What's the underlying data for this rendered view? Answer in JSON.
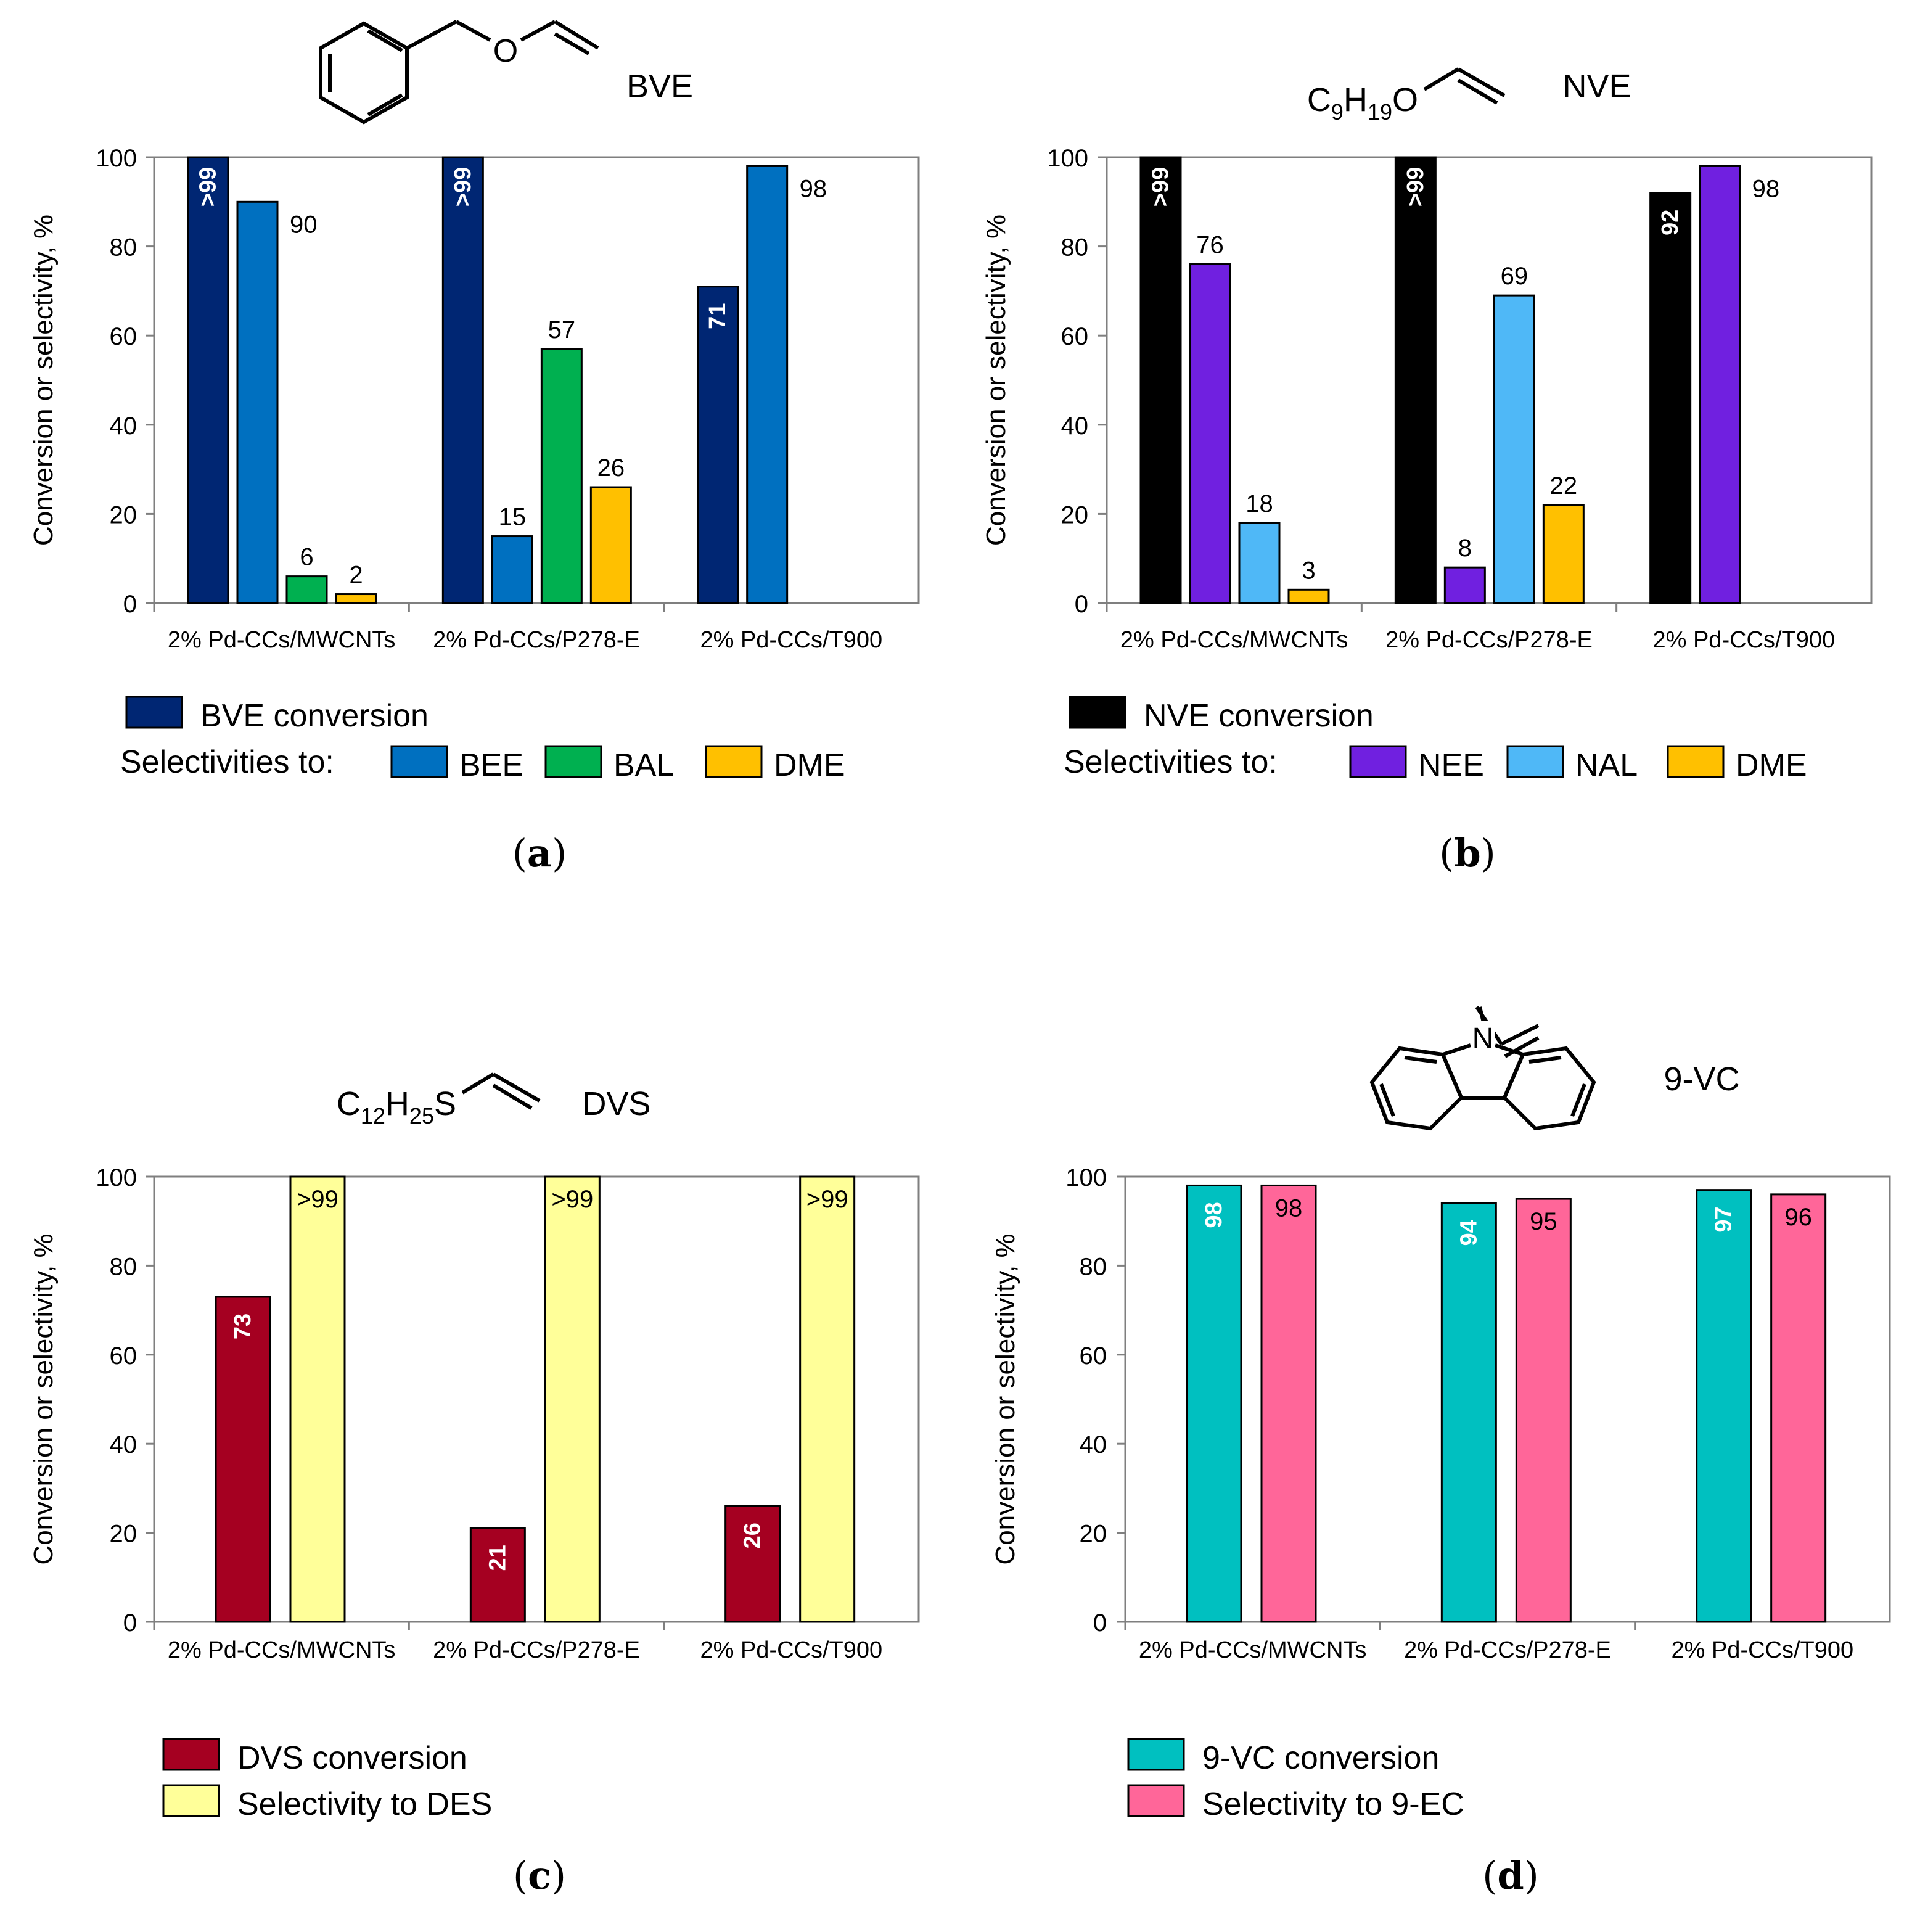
{
  "chart_data": [
    {
      "type": "bar",
      "panel": "(a)",
      "compound": "BVE",
      "ylabel": "Conversion or selectivity, %",
      "ylim": [
        0,
        100
      ],
      "yticks": [
        "0",
        "20",
        "40",
        "60",
        "80",
        "100"
      ],
      "categories": [
        "2% Pd-CCs/MWCNTs",
        "2% Pd-CCs/P278-E",
        "2% Pd-CCs/T900"
      ],
      "series": [
        {
          "name": "BVE conversion",
          "color": "#002673",
          "values": [
            100,
            100,
            71
          ],
          "labels": [
            ">99",
            ">99",
            "71"
          ],
          "label_inside": true
        },
        {
          "name": "BEE",
          "color": "#0070c0",
          "values": [
            90,
            15,
            98
          ],
          "labels": [
            "90",
            "15",
            "98"
          ]
        },
        {
          "name": "BAL",
          "color": "#00b050",
          "values": [
            6,
            57,
            null
          ],
          "labels": [
            "6",
            "57",
            null
          ]
        },
        {
          "name": "DME",
          "color": "#ffc000",
          "values": [
            2,
            26,
            null
          ],
          "labels": [
            "2",
            "26",
            null
          ]
        }
      ],
      "legend": {
        "conversion": "BVE conversion",
        "selectivity_prefix": "Selectivities to:"
      }
    },
    {
      "type": "bar",
      "panel": "(b)",
      "compound": "NVE",
      "formula_parts": [
        "C",
        "9",
        "H",
        "19",
        "O"
      ],
      "ylabel": "Conversion or selectivity, %",
      "ylim": [
        0,
        100
      ],
      "yticks": [
        "0",
        "20",
        "40",
        "60",
        "80",
        "100"
      ],
      "categories": [
        "2% Pd-CCs/MWCNTs",
        "2% Pd-CCs/P278-E",
        "2% Pd-CCs/T900"
      ],
      "series": [
        {
          "name": "NVE conversion",
          "color": "#000000",
          "values": [
            100,
            100,
            92
          ],
          "labels": [
            ">99",
            ">99",
            "92"
          ],
          "label_inside": true
        },
        {
          "name": "NEE",
          "color": "#7020e0",
          "values": [
            76,
            8,
            98
          ],
          "labels": [
            "76",
            "8",
            "98"
          ]
        },
        {
          "name": "NAL",
          "color": "#4fb8f7",
          "values": [
            18,
            69,
            null
          ],
          "labels": [
            "18",
            "69",
            null
          ]
        },
        {
          "name": "DME",
          "color": "#ffc000",
          "values": [
            3,
            22,
            null
          ],
          "labels": [
            "3",
            "22",
            null
          ]
        }
      ],
      "legend": {
        "conversion": "NVE conversion",
        "selectivity_prefix": "Selectivities to:"
      }
    },
    {
      "type": "bar",
      "panel": "(c)",
      "compound": "DVS",
      "formula_parts": [
        "C",
        "12",
        "H",
        "25",
        "S"
      ],
      "ylabel": "Conversion or selectivity, %",
      "ylim": [
        0,
        100
      ],
      "yticks": [
        "0",
        "20",
        "40",
        "60",
        "80",
        "100"
      ],
      "categories": [
        "2% Pd-CCs/MWCNTs",
        "2% Pd-CCs/P278-E",
        "2% Pd-CCs/T900"
      ],
      "series": [
        {
          "name": "DVS conversion",
          "color": "#a50021",
          "values": [
            73,
            21,
            26
          ],
          "labels": [
            "73",
            "21",
            "26"
          ],
          "label_inside": true
        },
        {
          "name": "Selectivity to DES",
          "color": "#ffff99",
          "values": [
            100,
            100,
            100
          ],
          "labels": [
            ">99",
            ">99",
            ">99"
          ],
          "label_top_inside": true
        }
      ],
      "legend": {
        "conversion": "DVS conversion",
        "selectivity": "Selectivity to DES"
      }
    },
    {
      "type": "bar",
      "panel": "(d)",
      "compound": "9-VC",
      "ylabel": "Conversion or selectivity, %",
      "ylim": [
        0,
        100
      ],
      "yticks": [
        "0",
        "20",
        "40",
        "60",
        "80",
        "100"
      ],
      "categories": [
        "2% Pd-CCs/MWCNTs",
        "2% Pd-CCs/P278-E",
        "2% Pd-CCs/T900"
      ],
      "series": [
        {
          "name": "9-VC conversion",
          "color": "#00c0c0",
          "values": [
            98,
            94,
            97
          ],
          "labels": [
            "98",
            "94",
            "97"
          ],
          "label_inside": true
        },
        {
          "name": "Selectivity to 9-EC",
          "color": "#ff6699",
          "values": [
            98,
            95,
            96
          ],
          "labels": [
            "98",
            "95",
            "96"
          ],
          "label_top_inside": true
        }
      ],
      "legend": {
        "conversion": "9-VC conversion",
        "selectivity": "Selectivity to 9-EC"
      }
    }
  ],
  "molecule_atoms": {
    "O": "O",
    "N": "N"
  }
}
